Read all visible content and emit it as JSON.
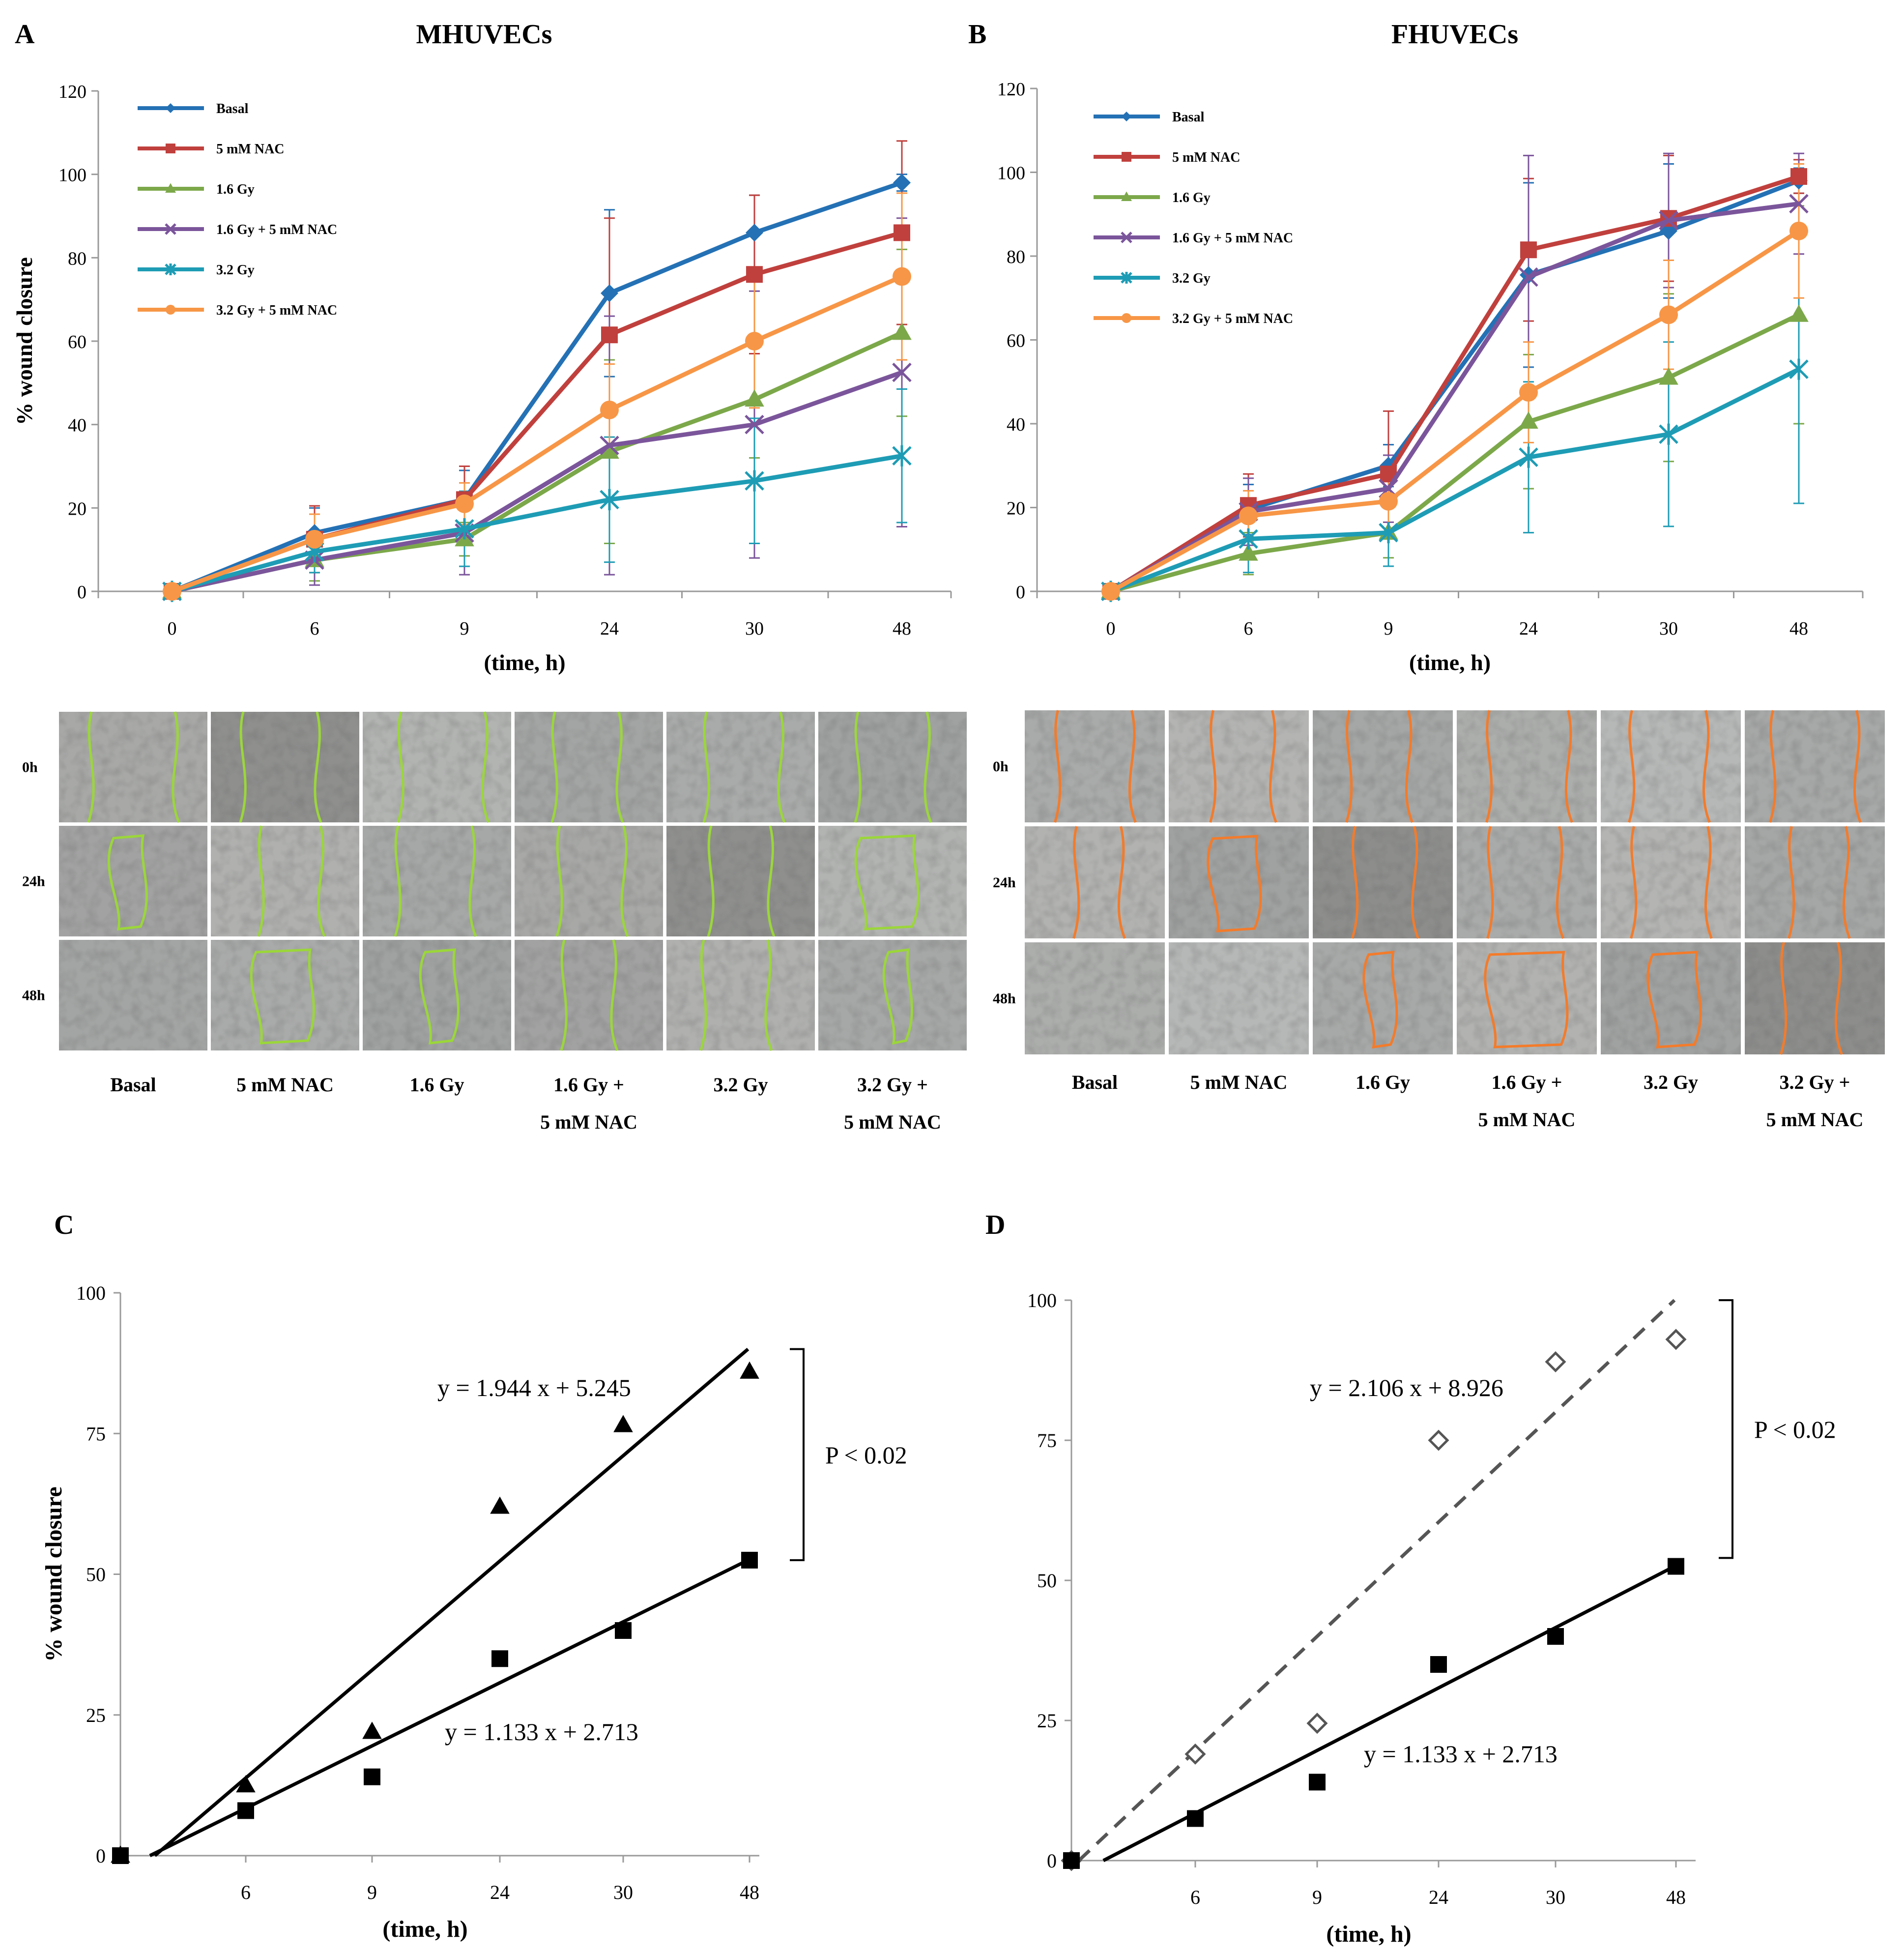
{
  "panel_a": {
    "letter": "A",
    "title": "MHUVECs",
    "micrograph": {
      "time_labels": [
        "0h",
        "24h",
        "48h"
      ],
      "condition_labels": [
        [
          "Basal"
        ],
        [
          "5 mM NAC"
        ],
        [
          "1.6 Gy"
        ],
        [
          "1.6 Gy +",
          "5 mM NAC"
        ],
        [
          "3.2 Gy"
        ],
        [
          "3.2 Gy  +",
          "5 mM NAC"
        ]
      ],
      "trace_color": "#9bd63a"
    }
  },
  "panel_b": {
    "letter": "B",
    "title": "FHUVECs",
    "micrograph": {
      "time_labels": [
        "0h",
        "24h",
        "48h"
      ],
      "condition_labels": [
        [
          "Basal"
        ],
        [
          "5 mM NAC"
        ],
        [
          "1.6 Gy"
        ],
        [
          "1.6 Gy +",
          "5 mM NAC"
        ],
        [
          "3.2 Gy"
        ],
        [
          "3.2 Gy  +",
          "5 mM NAC"
        ]
      ],
      "trace_color": "#f47b2a"
    }
  },
  "panel_c": {
    "letter": "C"
  },
  "panel_d": {
    "letter": "D"
  },
  "chart_data": [
    {
      "id": "A",
      "type": "line",
      "title": "MHUVECs",
      "xlabel": "(time, h)",
      "ylabel": "% wound closure",
      "categories": [
        "0",
        "6",
        "9",
        "24",
        "30",
        "48"
      ],
      "ylim": [
        0,
        120
      ],
      "yticks": [
        0,
        20,
        40,
        60,
        80,
        100,
        120
      ],
      "legend_position": "top-left",
      "series": [
        {
          "name": "Basal",
          "color": "#2471b5",
          "marker": "diamond",
          "values": [
            0,
            14,
            22,
            71.5,
            86,
            98
          ],
          "err": [
            0,
            6,
            7,
            20,
            9,
            2
          ]
        },
        {
          "name": "5 mM NAC",
          "color": "#c0403d",
          "marker": "square",
          "values": [
            0,
            12.5,
            22,
            61.5,
            76,
            86
          ],
          "err": [
            0,
            8,
            8,
            28,
            19,
            22
          ]
        },
        {
          "name": "1.6 Gy",
          "color": "#7ca84a",
          "marker": "triangle",
          "values": [
            0,
            7.5,
            12.5,
            33.5,
            46,
            62
          ],
          "err": [
            0,
            5,
            4,
            22,
            14,
            20
          ]
        },
        {
          "name": "1.6 Gy + 5 mM NAC",
          "color": "#7b559b",
          "marker": "x",
          "values": [
            0,
            7.5,
            14,
            35,
            40,
            52.5
          ],
          "err": [
            0,
            6,
            10,
            31,
            32,
            37
          ]
        },
        {
          "name": "3.2 Gy",
          "color": "#1e9cb5",
          "marker": "asterisk",
          "values": [
            0,
            9.5,
            15,
            22,
            26.5,
            32.5
          ],
          "err": [
            0,
            5,
            9,
            15,
            15,
            16
          ]
        },
        {
          "name": "3.2 Gy + 5 mM NAC",
          "color": "#f79646",
          "marker": "circle",
          "values": [
            0,
            12.5,
            21,
            43.5,
            60,
            75.5
          ],
          "err": [
            0,
            6,
            5,
            11,
            16,
            20
          ]
        }
      ]
    },
    {
      "id": "B",
      "type": "line",
      "title": "FHUVECs",
      "xlabel": "(time, h)",
      "ylabel": "",
      "categories": [
        "0",
        "6",
        "9",
        "24",
        "30",
        "48"
      ],
      "ylim": [
        0,
        120
      ],
      "yticks": [
        0,
        20,
        40,
        60,
        80,
        100,
        120
      ],
      "legend_position": "top-left",
      "series": [
        {
          "name": "Basal",
          "color": "#2471b5",
          "marker": "diamond",
          "values": [
            0,
            19.5,
            30,
            75.5,
            86,
            98
          ],
          "err": [
            0,
            6,
            5,
            22,
            16,
            3
          ]
        },
        {
          "name": "5 mM NAC",
          "color": "#c0403d",
          "marker": "square",
          "values": [
            0,
            20.5,
            28,
            81.5,
            89,
            99
          ],
          "err": [
            0,
            7.5,
            15,
            17,
            15,
            4
          ]
        },
        {
          "name": "1.6 Gy",
          "color": "#7ca84a",
          "marker": "triangle",
          "values": [
            0,
            9,
            14,
            40.5,
            51,
            66
          ],
          "err": [
            0,
            5,
            6,
            16,
            20,
            26
          ]
        },
        {
          "name": "1.6 Gy + 5 mM NAC",
          "color": "#7b559b",
          "marker": "x",
          "values": [
            0,
            19,
            24.5,
            75,
            88.5,
            92.5
          ],
          "err": [
            0,
            8,
            8,
            29,
            16,
            12
          ]
        },
        {
          "name": "3.2 Gy",
          "color": "#1e9cb5",
          "marker": "asterisk",
          "values": [
            0,
            12.5,
            14,
            32,
            37.5,
            53
          ],
          "err": [
            0,
            8,
            8,
            18,
            22,
            32
          ]
        },
        {
          "name": "3.2 Gy + 5 mM NAC",
          "color": "#f79646",
          "marker": "circle",
          "values": [
            0,
            18,
            21.5,
            47.5,
            66,
            86
          ],
          "err": [
            0,
            6,
            8,
            12,
            13,
            16
          ]
        }
      ]
    },
    {
      "id": "C",
      "type": "scatter",
      "xlabel": "(time, h)",
      "ylabel": "%  wound closure",
      "categories": [
        "",
        "6",
        "9",
        "24",
        "30",
        "48"
      ],
      "ylim": [
        0,
        100
      ],
      "yticks": [
        0,
        25,
        50,
        75,
        100
      ],
      "series": [
        {
          "name": "triangles",
          "marker": "triangle",
          "color": "#000000",
          "values": [
            0,
            12.5,
            22,
            62,
            76.5,
            86
          ]
        },
        {
          "name": "squares",
          "marker": "square",
          "color": "#000000",
          "values": [
            0,
            8,
            14,
            35,
            40,
            52.5
          ]
        }
      ],
      "fits": [
        {
          "equation": "y = 1.944 x + 5.245",
          "slope": 1.944,
          "intercept": 5.245,
          "style": "solid",
          "color": "#000000",
          "x_range": [
            2.7,
            48
          ]
        },
        {
          "equation": "y = 1.133 x + 2.713",
          "slope": 1.133,
          "intercept": 2.713,
          "style": "solid",
          "color": "#000000",
          "x_range": [
            2.4,
            48
          ]
        }
      ],
      "annotation": "P < 0.02",
      "bracket_values": [
        52.5,
        90
      ]
    },
    {
      "id": "D",
      "type": "scatter",
      "xlabel": "(time, h)",
      "ylabel": "",
      "categories": [
        "",
        "6",
        "9",
        "24",
        "30",
        "48"
      ],
      "ylim": [
        0,
        100
      ],
      "yticks": [
        0,
        25,
        50,
        75,
        100
      ],
      "series": [
        {
          "name": "open diamonds",
          "marker": "open-diamond",
          "color": "#555555",
          "values": [
            0,
            19,
            24.5,
            75,
            89,
            93
          ]
        },
        {
          "name": "squares",
          "marker": "square",
          "color": "#000000",
          "values": [
            0,
            7.5,
            14,
            35,
            40,
            52.5
          ]
        }
      ],
      "fits": [
        {
          "equation": "y = 2.106 x + 8.926",
          "slope": 2.106,
          "intercept": 8.926,
          "style": "dashed",
          "color": "#555555",
          "x_range": [
            0.6,
            48
          ]
        },
        {
          "equation": "y = 1.133 x + 2.713",
          "slope": 1.133,
          "intercept": 2.713,
          "style": "solid",
          "color": "#000000",
          "x_range": [
            2.4,
            48
          ]
        }
      ],
      "annotation": "P < 0.02",
      "bracket_values": [
        54,
        100
      ]
    }
  ]
}
